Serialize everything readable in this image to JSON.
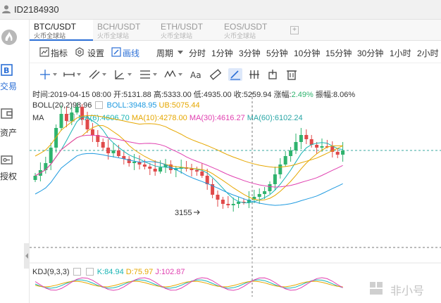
{
  "user": {
    "id": "ID2184930"
  },
  "rail": {
    "items": [
      {
        "label": "交易",
        "icon": "trade-b-icon"
      },
      {
        "label": "资产",
        "icon": "wallet-icon"
      },
      {
        "label": "授权",
        "icon": "key-icon"
      }
    ]
  },
  "tabs": [
    {
      "pair": "BTC/USDT",
      "exchange": "火币全球站",
      "active": true
    },
    {
      "pair": "BCH/USDT",
      "exchange": "火币全球站",
      "active": false
    },
    {
      "pair": "ETH/USDT",
      "exchange": "火币全球站",
      "active": false
    },
    {
      "pair": "EOS/USDT",
      "exchange": "火币全球站",
      "active": false
    }
  ],
  "toolbar": {
    "indicators": "指标",
    "settings": "设置",
    "draw": "画线",
    "period": "周期",
    "intervals": [
      "分时",
      "1分钟",
      "3分钟",
      "5分钟",
      "10分钟",
      "15分钟",
      "30分钟",
      "1小时",
      "2小时"
    ]
  },
  "ohlc": {
    "time": "时间:2019-04-15 08:00",
    "open": "开:5131.88",
    "high": "高:5333.00",
    "low": "低:4935.00",
    "close": "收:5259.94",
    "change_label": "涨幅:",
    "change": "2.49%",
    "amp_label": "振幅:",
    "amp": "8.06%"
  },
  "boll": {
    "name": "BOLL(20,2)",
    "mid": "98.96",
    "lb": "BOLL:3948.95",
    "ub": "UB:5075.44"
  },
  "ma": {
    "name": "MA",
    "ma6": "MA(6):4606.70",
    "ma10": "MA(10):4278.00",
    "ma30": "MA(30):4616.27",
    "ma60": "MA(60):6102.24"
  },
  "kdj": {
    "name": "KDJ(9,3,3)",
    "k": "K:84.94",
    "d": "D:75.97",
    "j": "J:102.87"
  },
  "low_marker": "3155",
  "watermark": "非小号",
  "chart_data": {
    "type": "candlestick",
    "low_annotation": 3155,
    "candles_count": 60
  }
}
